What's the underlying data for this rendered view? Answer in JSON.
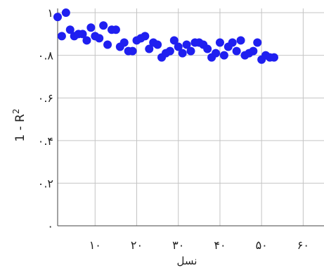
{
  "chart_data": {
    "type": "scatter",
    "title": "",
    "xlabel": "نسل",
    "ylabel": "1 - R",
    "ylabel_superscript": "2",
    "xlim": [
      1,
      65
    ],
    "ylim": [
      0,
      1.02
    ],
    "grid": true,
    "x_ticks": [
      {
        "value": 10,
        "label": "۱۰"
      },
      {
        "value": 20,
        "label": "۲۰"
      },
      {
        "value": 30,
        "label": "۳۰"
      },
      {
        "value": 40,
        "label": "۴۰"
      },
      {
        "value": 50,
        "label": "۵۰"
      },
      {
        "value": 60,
        "label": "۶۰"
      }
    ],
    "y_ticks": [
      {
        "value": 0,
        "label": "۰"
      },
      {
        "value": 0.2,
        "label": "۰.۲"
      },
      {
        "value": 0.4,
        "label": "۰.۴"
      },
      {
        "value": 0.6,
        "label": "۰.۶"
      },
      {
        "value": 0.8,
        "label": "۰.۸"
      },
      {
        "value": 1.0,
        "label": "۱"
      }
    ],
    "marker_color": "#1f1ff0",
    "series": [
      {
        "x": [
          1,
          2,
          3,
          4,
          5,
          6,
          7,
          8,
          9,
          10,
          11,
          12,
          13,
          14,
          15,
          16,
          17,
          18,
          19,
          20,
          21,
          22,
          23,
          24,
          25,
          26,
          27,
          28,
          29,
          30,
          31,
          32,
          33,
          34,
          35,
          36,
          37,
          38,
          39,
          40,
          41,
          42,
          43,
          44,
          45,
          46,
          47,
          48,
          49,
          50,
          51,
          52,
          53
        ],
        "y": [
          0.98,
          0.89,
          1.0,
          0.92,
          0.89,
          0.9,
          0.9,
          0.87,
          0.93,
          0.89,
          0.88,
          0.94,
          0.85,
          0.92,
          0.92,
          0.84,
          0.86,
          0.82,
          0.82,
          0.87,
          0.88,
          0.89,
          0.83,
          0.86,
          0.85,
          0.79,
          0.81,
          0.82,
          0.87,
          0.84,
          0.81,
          0.85,
          0.82,
          0.86,
          0.86,
          0.85,
          0.83,
          0.79,
          0.81,
          0.86,
          0.8,
          0.84,
          0.86,
          0.82,
          0.87,
          0.8,
          0.81,
          0.82,
          0.86,
          0.78,
          0.8,
          0.79,
          0.79
        ]
      }
    ]
  }
}
